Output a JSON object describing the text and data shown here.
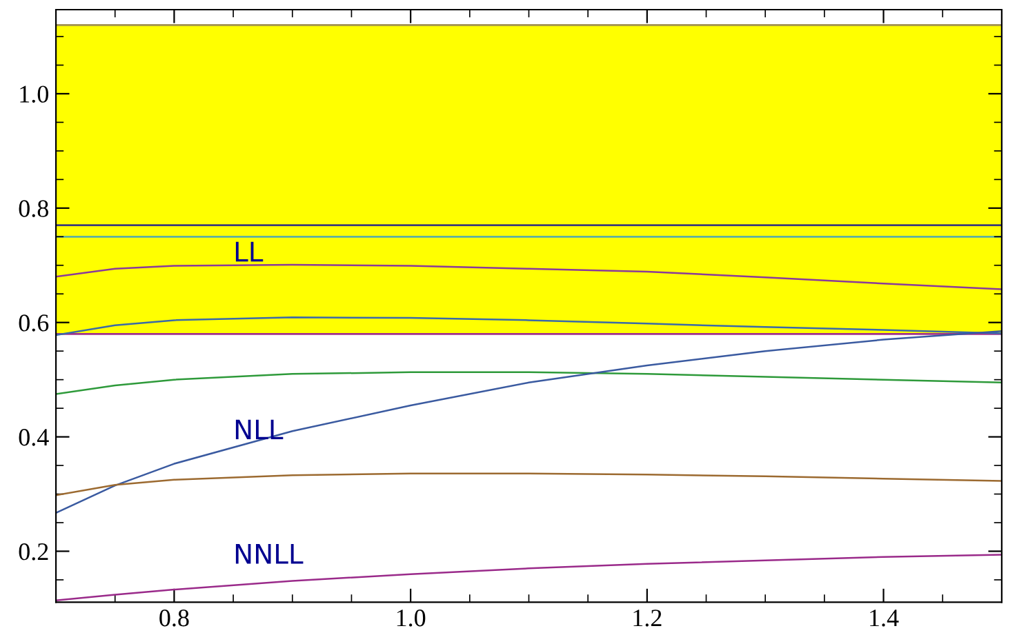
{
  "chart_data": {
    "type": "line",
    "x": [
      0.7,
      0.75,
      0.8,
      0.9,
      1.0,
      1.1,
      1.2,
      1.3,
      1.4,
      1.5
    ],
    "series": [
      {
        "color": "#8a3a9a",
        "values": [
          0.68,
          0.694,
          0.699,
          0.701,
          0.699,
          0.694,
          0.689,
          0.679,
          0.668,
          0.658
        ]
      },
      {
        "color": "#3a6aa8",
        "values": [
          0.578,
          0.595,
          0.604,
          0.609,
          0.608,
          0.604,
          0.598,
          0.592,
          0.587,
          0.581
        ]
      },
      {
        "color": "#2e9a3a",
        "values": [
          0.475,
          0.49,
          0.5,
          0.51,
          0.513,
          0.513,
          0.51,
          0.505,
          0.5,
          0.495
        ]
      },
      {
        "color": "#3a5aa0",
        "values": [
          0.267,
          0.315,
          0.353,
          0.41,
          0.455,
          0.495,
          0.525,
          0.55,
          0.57,
          0.585
        ]
      },
      {
        "color": "#9c6a30",
        "values": [
          0.298,
          0.316,
          0.325,
          0.333,
          0.336,
          0.336,
          0.334,
          0.331,
          0.327,
          0.323
        ]
      },
      {
        "color": "#9a2a8a",
        "values": [
          0.114,
          0.124,
          0.133,
          0.148,
          0.16,
          0.17,
          0.178,
          0.184,
          0.19,
          0.194
        ]
      }
    ],
    "bands": [
      {
        "axis": "y",
        "from": 0.58,
        "to": 1.12,
        "color": "#ffff00"
      }
    ],
    "ref_lines": [
      {
        "axis": "y",
        "value": 1.12,
        "color": "#a09050"
      },
      {
        "axis": "y",
        "value": 0.77,
        "color": "#3a3a7a"
      },
      {
        "axis": "y",
        "value": 0.75,
        "color": "#5fb0a0"
      },
      {
        "axis": "y",
        "value": 0.58,
        "color": "#a0308a"
      }
    ],
    "annotations": [
      "LL",
      "NLL",
      "NNLL"
    ],
    "xlim": [
      0.7,
      1.5
    ],
    "ylim": [
      0.111,
      1.147
    ],
    "xticks": [
      0.8,
      {
        "value": 1,
        "label": "1.0"
      },
      1.2,
      1.4
    ],
    "yticks": [
      0.2,
      0.4,
      0.6,
      0.8,
      {
        "value": 1,
        "label": "1.0"
      }
    ],
    "grid": false,
    "legend": false,
    "line_style": "solid",
    "marker": "none"
  }
}
